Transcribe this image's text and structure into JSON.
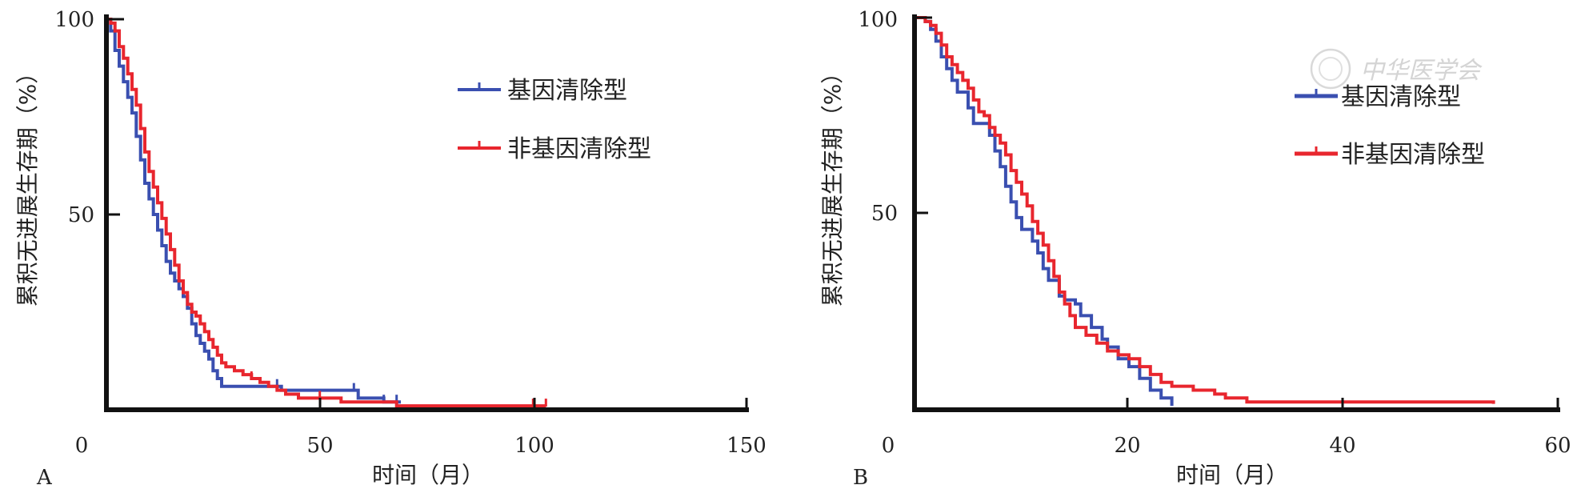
{
  "chart_data": [
    {
      "panel": "A",
      "type": "line",
      "xlabel": "时间（月）",
      "ylabel": "累积无进展生存期（%）",
      "xlim": [
        0,
        150
      ],
      "ylim": [
        0,
        100
      ],
      "xticks": [
        "0",
        "50",
        "100",
        "150"
      ],
      "yticks": [
        "50",
        "100"
      ],
      "legend_position": "upper-right",
      "grid": false,
      "series": [
        {
          "name": "基因清除型",
          "color": "#3a4fb0",
          "points": [
            [
              0,
              100
            ],
            [
              1,
              97
            ],
            [
              2,
              92
            ],
            [
              3,
              88
            ],
            [
              4,
              84
            ],
            [
              5,
              80
            ],
            [
              6,
              76
            ],
            [
              7,
              70
            ],
            [
              8,
              64
            ],
            [
              9,
              58
            ],
            [
              10,
              54
            ],
            [
              11,
              50
            ],
            [
              12,
              46
            ],
            [
              13,
              42
            ],
            [
              14,
              38
            ],
            [
              15,
              35
            ],
            [
              16,
              33
            ],
            [
              17,
              31
            ],
            [
              18,
              29
            ],
            [
              19,
              26
            ],
            [
              20,
              22
            ],
            [
              21,
              19
            ],
            [
              22,
              17
            ],
            [
              23,
              15
            ],
            [
              24,
              13
            ],
            [
              25,
              10
            ],
            [
              26,
              8
            ],
            [
              27,
              6
            ],
            [
              30,
              6
            ],
            [
              40,
              6
            ],
            [
              41,
              5
            ],
            [
              45,
              5
            ],
            [
              50,
              5
            ],
            [
              58,
              5
            ],
            [
              59,
              3
            ],
            [
              64,
              3
            ],
            [
              65,
              2
            ],
            [
              69,
              2
            ]
          ],
          "censor_x": [
            40,
            58,
            65,
            68
          ]
        },
        {
          "name": "非基因清除型",
          "color": "#e8262e",
          "points": [
            [
              0,
              100
            ],
            [
              1,
              99
            ],
            [
              2,
              97
            ],
            [
              3,
              93
            ],
            [
              4,
              90
            ],
            [
              5,
              86
            ],
            [
              6,
              82
            ],
            [
              7,
              78
            ],
            [
              8,
              72
            ],
            [
              9,
              66
            ],
            [
              10,
              61
            ],
            [
              11,
              57
            ],
            [
              12,
              53
            ],
            [
              13,
              49
            ],
            [
              14,
              45
            ],
            [
              15,
              41
            ],
            [
              16,
              37
            ],
            [
              17,
              33
            ],
            [
              18,
              30
            ],
            [
              19,
              27
            ],
            [
              20,
              25
            ],
            [
              21,
              24
            ],
            [
              22,
              22
            ],
            [
              23,
              20
            ],
            [
              24,
              18
            ],
            [
              25,
              16
            ],
            [
              26,
              14
            ],
            [
              27,
              12
            ],
            [
              28,
              11
            ],
            [
              30,
              10
            ],
            [
              32,
              9
            ],
            [
              34,
              8
            ],
            [
              36,
              7
            ],
            [
              38,
              6
            ],
            [
              40,
              5
            ],
            [
              42,
              4
            ],
            [
              45,
              3
            ],
            [
              48,
              3
            ],
            [
              52,
              3
            ],
            [
              55,
              2
            ],
            [
              60,
              2
            ],
            [
              65,
              2
            ],
            [
              68,
              1
            ],
            [
              75,
              1
            ],
            [
              100,
              1
            ],
            [
              103,
              1
            ]
          ],
          "censor_x": [
            22,
            34,
            50,
            100,
            103
          ]
        }
      ]
    },
    {
      "panel": "B",
      "type": "line",
      "xlabel": "时间（月）",
      "ylabel": "累积无进展生存期（%）",
      "xlim": [
        0,
        60
      ],
      "ylim": [
        0,
        100
      ],
      "xticks": [
        "0",
        "20",
        "40",
        "60"
      ],
      "yticks": [
        "50",
        "100"
      ],
      "legend_position": "upper-right",
      "grid": false,
      "series": [
        {
          "name": "基因清除型",
          "color": "#3a4fb0",
          "points": [
            [
              0,
              100
            ],
            [
              1,
              99
            ],
            [
              1.5,
              97
            ],
            [
              2,
              94
            ],
            [
              2.5,
              90
            ],
            [
              3,
              87
            ],
            [
              3.5,
              84
            ],
            [
              4,
              81
            ],
            [
              5,
              77
            ],
            [
              5.5,
              73
            ],
            [
              6.5,
              73
            ],
            [
              7,
              70
            ],
            [
              7.5,
              66
            ],
            [
              8,
              62
            ],
            [
              8.5,
              57
            ],
            [
              9,
              53
            ],
            [
              9.5,
              49
            ],
            [
              10,
              46
            ],
            [
              11,
              43
            ],
            [
              11.5,
              40
            ],
            [
              12,
              36
            ],
            [
              12.5,
              33
            ],
            [
              13,
              33
            ],
            [
              13.5,
              29
            ],
            [
              14,
              28
            ],
            [
              15,
              27
            ],
            [
              15.5,
              24
            ],
            [
              16.5,
              21
            ],
            [
              17.5,
              18
            ],
            [
              18,
              16
            ],
            [
              19,
              13
            ],
            [
              20,
              11
            ],
            [
              21,
              8
            ],
            [
              22,
              5
            ],
            [
              23,
              3
            ],
            [
              24,
              1
            ]
          ],
          "censor_x": []
        },
        {
          "name": "非基因清除型",
          "color": "#e8262e",
          "points": [
            [
              0,
              100
            ],
            [
              1,
              99
            ],
            [
              1.5,
              98
            ],
            [
              2,
              96
            ],
            [
              2.5,
              93
            ],
            [
              3,
              90
            ],
            [
              3.5,
              88
            ],
            [
              4,
              86
            ],
            [
              4.5,
              84
            ],
            [
              5,
              82
            ],
            [
              5.5,
              79
            ],
            [
              6,
              76
            ],
            [
              6.5,
              75
            ],
            [
              7,
              72
            ],
            [
              7.5,
              70
            ],
            [
              8,
              68
            ],
            [
              8.5,
              65
            ],
            [
              9,
              61
            ],
            [
              9.5,
              58
            ],
            [
              10,
              55
            ],
            [
              10.5,
              52
            ],
            [
              11,
              48
            ],
            [
              11.5,
              45
            ],
            [
              12,
              42
            ],
            [
              12.5,
              38
            ],
            [
              13,
              34
            ],
            [
              13.5,
              30
            ],
            [
              14,
              27
            ],
            [
              14.5,
              24
            ],
            [
              15,
              21
            ],
            [
              16,
              19
            ],
            [
              17,
              17
            ],
            [
              18,
              15
            ],
            [
              19,
              14
            ],
            [
              20,
              13
            ],
            [
              21,
              11
            ],
            [
              22,
              9
            ],
            [
              23,
              7
            ],
            [
              24,
              6
            ],
            [
              26,
              5
            ],
            [
              28,
              4
            ],
            [
              29,
              3
            ],
            [
              31,
              2
            ],
            [
              33,
              2
            ],
            [
              40,
              2
            ],
            [
              45,
              2
            ],
            [
              50,
              2
            ],
            [
              54,
              1.5
            ]
          ],
          "censor_x": []
        }
      ]
    }
  ],
  "panel_tags": {
    "a": "A",
    "b": "B"
  },
  "watermark": "中华医学会"
}
